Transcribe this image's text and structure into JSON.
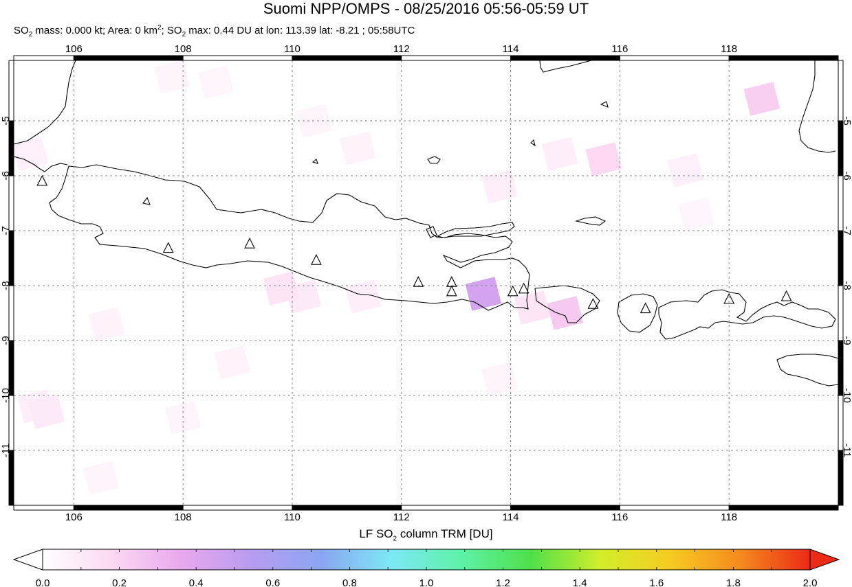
{
  "title": "Suomi NPP/OMPS - 08/25/2016 05:56-05:59 UT",
  "subtitle": {
    "p1": "SO",
    "p2": "2",
    "p3": " mass: 0.000 kt; Area: 0 km",
    "p4": "2",
    "p5": "; SO",
    "p6": "2",
    "p7": " max: 0.44 DU at lon: 113.39 lat: -8.21 ; 05:58UTC"
  },
  "map": {
    "lon_range": [
      104.9,
      120.0
    ],
    "lat_range": [
      -12.0,
      -3.9
    ],
    "lon_ticks": [
      106,
      108,
      110,
      112,
      114,
      116,
      118
    ],
    "lon_tick_labels": [
      "106",
      "108",
      "110",
      "112",
      "114",
      "116",
      "118"
    ],
    "lat_ticks": [
      -5,
      -6,
      -7,
      -8,
      -9,
      -10,
      -11
    ],
    "lat_tick_labels": [
      "-5",
      "-6",
      "-7",
      "-8",
      "-9",
      "-10",
      "-11"
    ],
    "grid": "dashed",
    "volcano_marker": "triangle-icon",
    "volcanoes": [
      {
        "lon": 105.42,
        "lat": -6.1
      },
      {
        "lon": 107.73,
        "lat": -7.32
      },
      {
        "lon": 109.22,
        "lat": -7.24
      },
      {
        "lon": 110.44,
        "lat": -7.54
      },
      {
        "lon": 112.31,
        "lat": -7.94
      },
      {
        "lon": 112.92,
        "lat": -7.94
      },
      {
        "lon": 112.92,
        "lat": -8.11
      },
      {
        "lon": 114.04,
        "lat": -8.11
      },
      {
        "lon": 114.24,
        "lat": -8.06
      },
      {
        "lon": 115.51,
        "lat": -8.34
      },
      {
        "lon": 116.47,
        "lat": -8.42
      },
      {
        "lon": 118.0,
        "lat": -8.25
      },
      {
        "lon": 119.05,
        "lat": -8.2
      }
    ],
    "so2_pixels": [
      {
        "lon": 107.8,
        "lat": -4.2,
        "du": 0.05
      },
      {
        "lon": 108.6,
        "lat": -4.3,
        "du": 0.04
      },
      {
        "lon": 110.4,
        "lat": -5.0,
        "du": 0.05
      },
      {
        "lon": 111.2,
        "lat": -5.5,
        "du": 0.06
      },
      {
        "lon": 114.9,
        "lat": -5.6,
        "du": 0.08
      },
      {
        "lon": 115.7,
        "lat": -5.7,
        "du": 0.18
      },
      {
        "lon": 113.8,
        "lat": -6.2,
        "du": 0.08
      },
      {
        "lon": 118.6,
        "lat": -4.6,
        "du": 0.22
      },
      {
        "lon": 117.2,
        "lat": -5.9,
        "du": 0.07
      },
      {
        "lon": 113.5,
        "lat": -8.15,
        "du": 0.44
      },
      {
        "lon": 114.4,
        "lat": -8.4,
        "du": 0.12
      },
      {
        "lon": 115.0,
        "lat": -8.5,
        "du": 0.24
      },
      {
        "lon": 110.2,
        "lat": -8.2,
        "du": 0.1
      },
      {
        "lon": 109.8,
        "lat": -8.05,
        "du": 0.12
      },
      {
        "lon": 111.3,
        "lat": -8.2,
        "du": 0.08
      },
      {
        "lon": 106.6,
        "lat": -8.7,
        "du": 0.06
      },
      {
        "lon": 105.3,
        "lat": -10.2,
        "du": 0.08
      },
      {
        "lon": 105.5,
        "lat": -10.3,
        "du": 0.1
      },
      {
        "lon": 106.5,
        "lat": -11.5,
        "du": 0.05
      },
      {
        "lon": 108.9,
        "lat": -9.4,
        "du": 0.06
      },
      {
        "lon": 108.0,
        "lat": -10.4,
        "du": 0.05
      },
      {
        "lon": 113.8,
        "lat": -9.7,
        "du": 0.05
      },
      {
        "lon": 117.4,
        "lat": -6.7,
        "du": 0.04
      },
      {
        "lon": 105.2,
        "lat": -5.6,
        "du": 0.07
      }
    ]
  },
  "colorbar": {
    "title_p1": "LF SO",
    "title_p2": "2",
    "title_p3": " column TRM [DU]",
    "min": 0.0,
    "max": 2.0,
    "tick_values": [
      0.0,
      0.2,
      0.4,
      0.6,
      0.8,
      1.0,
      1.2,
      1.4,
      1.6,
      1.8,
      2.0
    ],
    "tick_labels": [
      "0.0",
      "0.2",
      "0.4",
      "0.6",
      "0.8",
      "1.0",
      "1.2",
      "1.4",
      "1.6",
      "1.8",
      "2.0"
    ],
    "colors": [
      "#ffffff",
      "#fcd8f2",
      "#e8a8ee",
      "#b79cf0",
      "#8aa6f2",
      "#7de8f5",
      "#5ef2a8",
      "#4fe04a",
      "#d2ee2a",
      "#f7cb22",
      "#f58a1e",
      "#ec2a16"
    ]
  }
}
